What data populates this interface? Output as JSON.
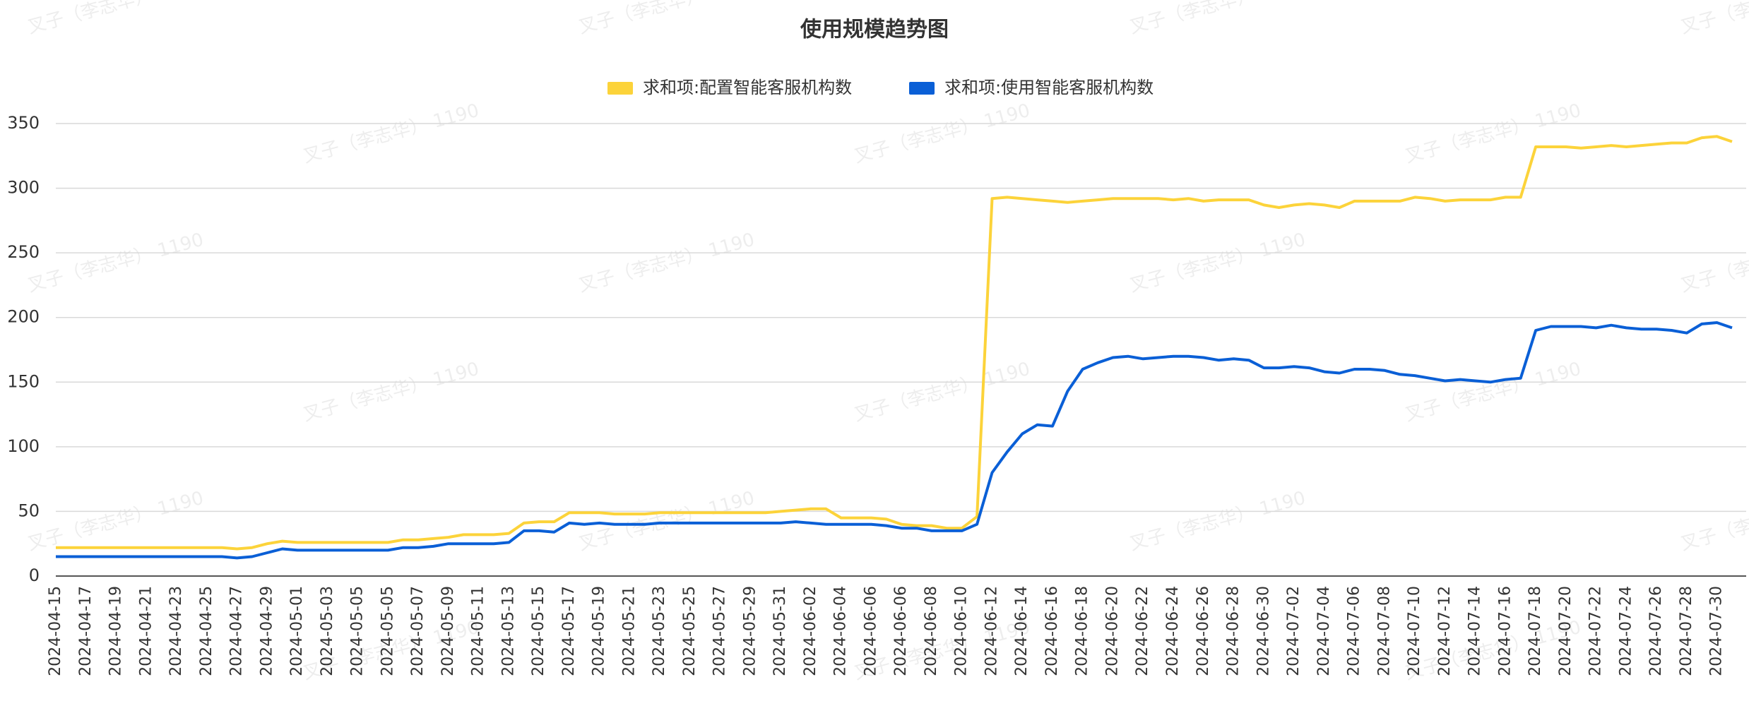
{
  "chart_data": {
    "type": "line",
    "title": "使用规模趋势图",
    "watermark": "叉子（李志华） 1190",
    "categories": [
      "2024-04-15",
      null,
      "2024-04-17",
      null,
      "2024-04-19",
      null,
      "2024-04-21",
      null,
      "2024-04-23",
      null,
      "2024-04-25",
      null,
      "2024-04-27",
      null,
      "2024-04-29",
      null,
      "2024-05-01",
      null,
      "2024-05-03",
      null,
      "2024-05-05",
      null,
      "2024-05-05",
      null,
      "2024-05-07",
      null,
      "2024-05-09",
      null,
      "2024-05-11",
      null,
      "2024-05-13",
      null,
      "2024-05-15",
      null,
      "2024-05-17",
      null,
      "2024-05-19",
      null,
      "2024-05-21",
      null,
      "2024-05-23",
      null,
      "2024-05-25",
      null,
      "2024-05-27",
      null,
      "2024-05-29",
      null,
      "2024-05-31",
      null,
      "2024-06-02",
      null,
      "2024-06-04",
      null,
      "2024-06-06",
      null,
      "2024-06-06",
      null,
      "2024-06-08",
      null,
      "2024-06-10",
      null,
      "2024-06-12",
      null,
      "2024-06-14",
      null,
      "2024-06-16",
      null,
      "2024-06-18",
      null,
      "2024-06-20",
      null,
      "2024-06-22",
      null,
      "2024-06-24",
      null,
      "2024-06-26",
      null,
      "2024-06-28",
      null,
      "2024-06-30",
      null,
      "2024-07-02",
      null,
      "2024-07-04",
      null,
      "2024-07-06",
      null,
      "2024-07-08",
      null,
      "2024-07-10",
      null,
      "2024-07-12",
      null,
      "2024-07-14",
      null,
      "2024-07-16",
      null,
      "2024-07-18",
      null,
      "2024-07-20",
      null,
      "2024-07-22",
      null,
      "2024-07-24",
      null,
      "2024-07-26",
      null,
      "2024-07-28",
      null,
      "2024-07-30",
      null
    ],
    "series": [
      {
        "name": "求和项:配置智能客服机构数",
        "color": "#fcd33a",
        "values": [
          22,
          22,
          22,
          22,
          22,
          22,
          22,
          22,
          22,
          22,
          22,
          22,
          21,
          22,
          25,
          27,
          26,
          26,
          26,
          26,
          26,
          26,
          26,
          28,
          28,
          29,
          30,
          32,
          32,
          32,
          33,
          41,
          42,
          42,
          49,
          49,
          49,
          48,
          48,
          48,
          49,
          49,
          49,
          49,
          49,
          49,
          49,
          49,
          50,
          51,
          52,
          52,
          45,
          45,
          45,
          44,
          40,
          39,
          39,
          37,
          37,
          46,
          292,
          293,
          292,
          291,
          290,
          289,
          290,
          291,
          292,
          292,
          292,
          292,
          291,
          292,
          290,
          291,
          291,
          291,
          287,
          285,
          287,
          288,
          287,
          285,
          290,
          290,
          290,
          290,
          293,
          292,
          290,
          291,
          291,
          291,
          293,
          293,
          332,
          332,
          332,
          331,
          332,
          333,
          332,
          333,
          334,
          335,
          335,
          339,
          340,
          336
        ]
      },
      {
        "name": "求和项:使用智能客服机构数",
        "color": "#0a5fd6",
        "values": [
          15,
          15,
          15,
          15,
          15,
          15,
          15,
          15,
          15,
          15,
          15,
          15,
          14,
          15,
          18,
          21,
          20,
          20,
          20,
          20,
          20,
          20,
          20,
          22,
          22,
          23,
          25,
          25,
          25,
          25,
          26,
          35,
          35,
          34,
          41,
          40,
          41,
          40,
          40,
          40,
          41,
          41,
          41,
          41,
          41,
          41,
          41,
          41,
          41,
          42,
          41,
          40,
          40,
          40,
          40,
          39,
          37,
          37,
          35,
          35,
          35,
          40,
          80,
          96,
          110,
          117,
          116,
          143,
          160,
          165,
          169,
          170,
          168,
          169,
          170,
          170,
          169,
          167,
          168,
          167,
          161,
          161,
          162,
          161,
          158,
          157,
          160,
          160,
          159,
          156,
          155,
          153,
          151,
          152,
          151,
          150,
          152,
          153,
          190,
          193,
          193,
          193,
          192,
          194,
          192,
          191,
          191,
          190,
          188,
          195,
          196,
          192
        ]
      }
    ],
    "ylim": [
      0,
      350
    ],
    "yticks": [
      0,
      50,
      100,
      150,
      200,
      250,
      300,
      350
    ],
    "grid": true,
    "legend": "top"
  }
}
